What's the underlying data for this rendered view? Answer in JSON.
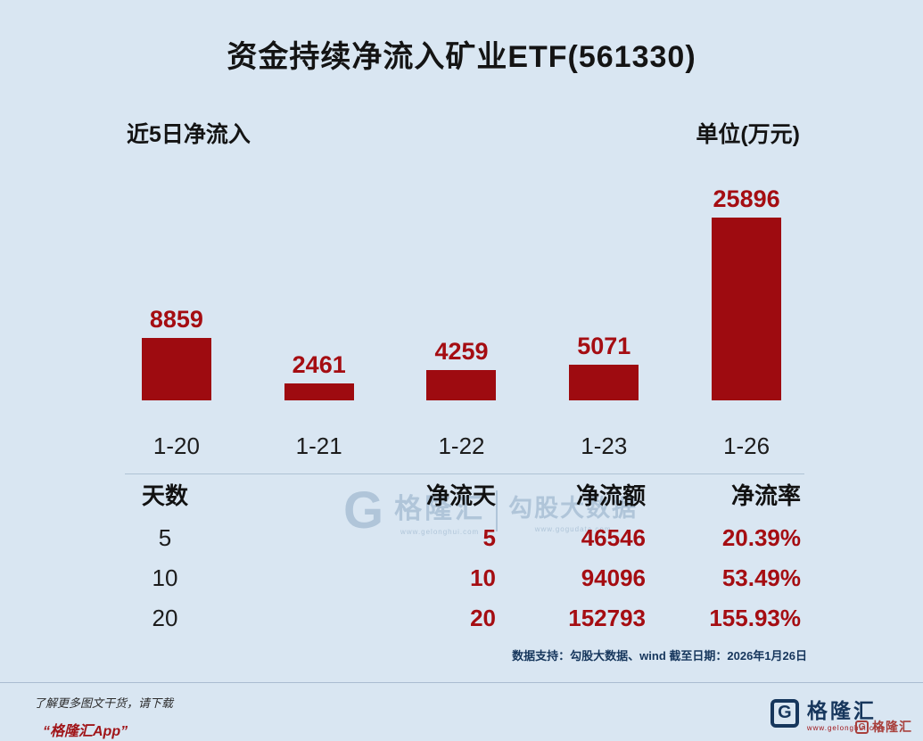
{
  "title": "资金持续净流入矿业ETF(561330)",
  "chart_header": {
    "left": "近5日净流入",
    "right": "单位(万元)"
  },
  "chart_data": {
    "type": "bar",
    "title": "近5日净流入",
    "ylabel": "净流入(万元)",
    "categories": [
      "1-20",
      "1-21",
      "1-22",
      "1-23",
      "1-26"
    ],
    "values": [
      8859,
      2461,
      4259,
      5071,
      25896
    ],
    "ylim": [
      0,
      25896
    ],
    "grid": false,
    "legend": "none",
    "value_labels": true,
    "bar_color": "#9e0b10",
    "value_label_color": "#a50d12"
  },
  "table": {
    "headers": [
      "天数",
      "净流天",
      "净流额",
      "净流率"
    ],
    "rows": [
      [
        "5",
        "5",
        "46546",
        "20.39%"
      ],
      [
        "10",
        "10",
        "94096",
        "53.49%"
      ],
      [
        "20",
        "20",
        "152793",
        "155.93%"
      ]
    ]
  },
  "footnote": "数据支持：勾股大数据、wind 截至日期：2026年1月26日",
  "footer": {
    "promo_line1": "了解更多图文干货，请下载",
    "promo_line2": "“格隆汇App”",
    "brand_icon": "G",
    "brand_name": "格隆汇",
    "brand_url": "www.gelonghui.com",
    "corner_icon": "G",
    "corner_name": "格隆汇"
  },
  "watermark": {
    "icon": "G",
    "brand": "格隆汇",
    "brand_url": "www.gelonghui.com",
    "partner": "勾股大数据",
    "partner_url": "www.gogudata.com"
  },
  "colors": {
    "background": "#d9e6f2",
    "bar": "#9e0b10",
    "accent_red": "#a50d12",
    "navy": "#16365c",
    "watermark": "#aec4d8"
  }
}
